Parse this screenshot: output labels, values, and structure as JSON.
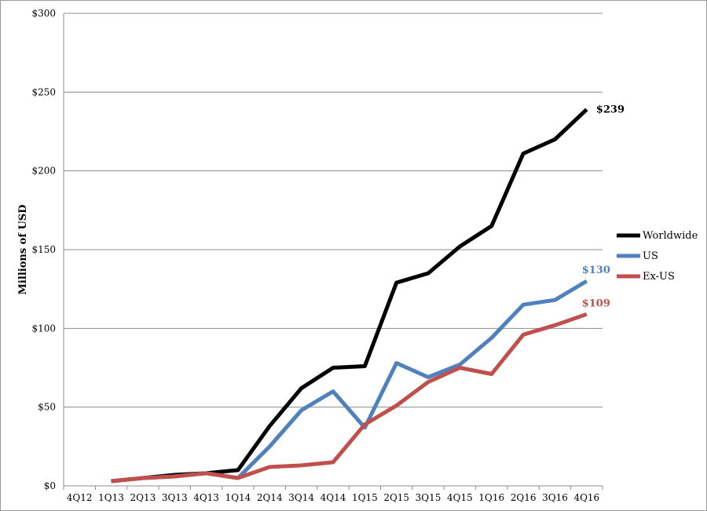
{
  "chart_data": {
    "type": "line",
    "title": "",
    "xlabel": "",
    "ylabel": "Millions of USD",
    "ylim": [
      0,
      300
    ],
    "yticks": [
      0,
      50,
      100,
      150,
      200,
      250,
      300
    ],
    "ytick_labels": [
      "$0",
      "$50",
      "$100",
      "$150",
      "$200",
      "$250",
      "$300"
    ],
    "grid": "horizontal",
    "legend_position": "right",
    "categories": [
      "4Q12",
      "1Q13",
      "2Q13",
      "3Q13",
      "4Q13",
      "1Q14",
      "2Q14",
      "3Q14",
      "4Q14",
      "1Q15",
      "2Q15",
      "3Q15",
      "4Q15",
      "1Q16",
      "2Q16",
      "3Q16",
      "4Q16"
    ],
    "series": [
      {
        "name": "Worldwide",
        "color": "#000000",
        "values": [
          null,
          3,
          5,
          7,
          8,
          10,
          38,
          62,
          75,
          76,
          129,
          135,
          152,
          165,
          211,
          220,
          239
        ],
        "end_label": ""
      },
      {
        "name": "US",
        "color": "#4f81bd",
        "values": [
          null,
          3,
          5,
          6,
          8,
          5,
          25,
          48,
          60,
          37,
          78,
          69,
          77,
          94,
          115,
          118,
          130
        ],
        "end_label": "$130"
      },
      {
        "name": "Ex-US",
        "color": "#c0504d",
        "values": [
          null,
          3,
          5,
          6,
          8,
          5,
          12,
          13,
          15,
          39,
          51,
          66,
          75,
          71,
          96,
          102,
          109
        ],
        "end_label": "$109"
      }
    ],
    "worldwide_end_label": "$239"
  }
}
